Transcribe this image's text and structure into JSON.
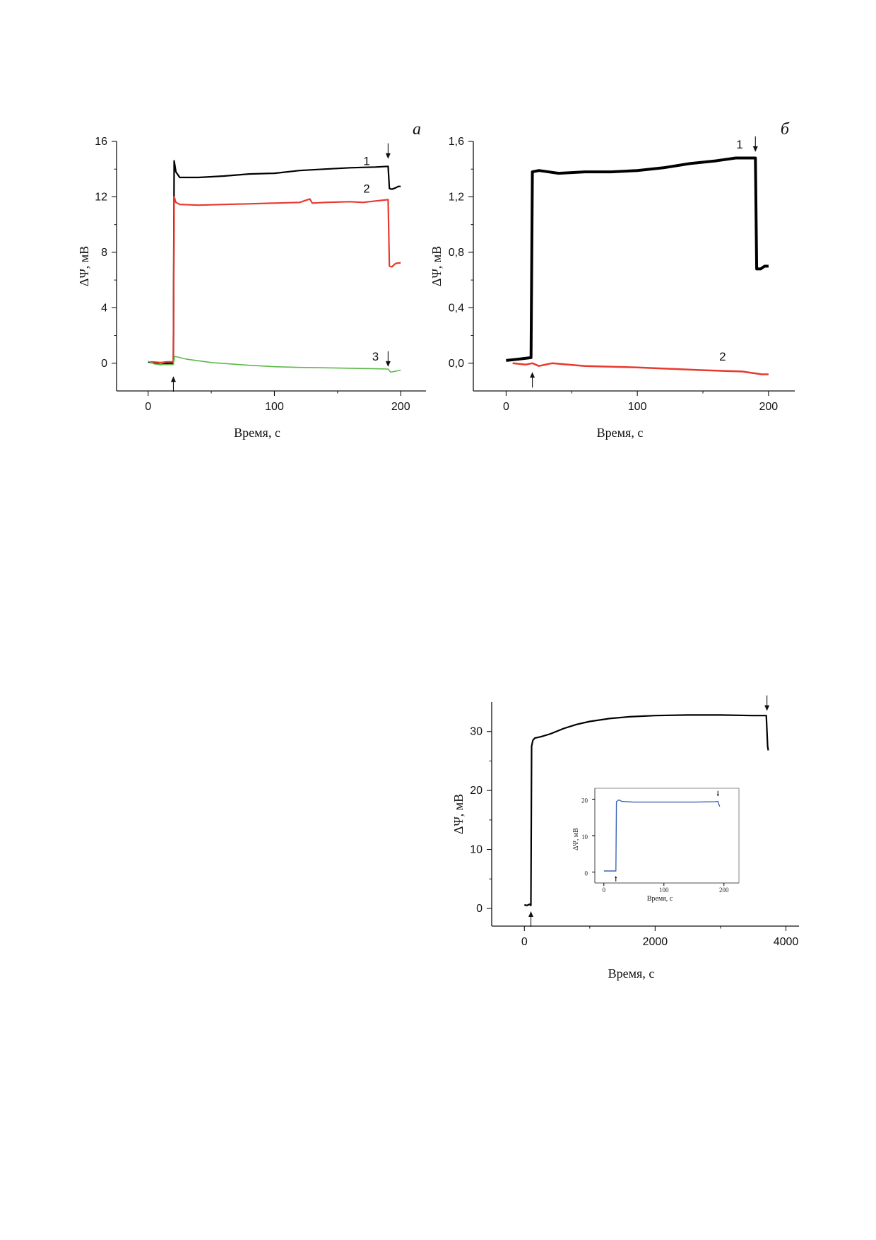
{
  "chart_data": [
    {
      "id": "a",
      "type": "line",
      "panel_letter": "a",
      "xlabel": "Время, с",
      "ylabel": "ΔΨ, мВ",
      "xlim": [
        -25,
        220
      ],
      "ylim": [
        -2,
        16
      ],
      "x_ticks": [
        0,
        100,
        200
      ],
      "x_tick_labels": [
        "0",
        "100",
        "200"
      ],
      "y_ticks": [
        0,
        4,
        8,
        12,
        16
      ],
      "y_tick_labels": [
        "0",
        "4",
        "8",
        "12",
        "16"
      ],
      "grid": false,
      "colors": {
        "1": "#000000",
        "2": "#e8392e",
        "3": "#5db84a"
      },
      "series": [
        {
          "label": "1",
          "color": "#000000",
          "width": 2.2,
          "points": [
            [
              0,
              0.1
            ],
            [
              5,
              0.0
            ],
            [
              10,
              -0.1
            ],
            [
              15,
              0.0
            ],
            [
              20,
              0.0
            ],
            [
              20.6,
              14.6
            ],
            [
              22,
              13.8
            ],
            [
              25,
              13.4
            ],
            [
              40,
              13.4
            ],
            [
              60,
              13.5
            ],
            [
              80,
              13.65
            ],
            [
              100,
              13.7
            ],
            [
              120,
              13.9
            ],
            [
              140,
              14.0
            ],
            [
              160,
              14.1
            ],
            [
              180,
              14.15
            ],
            [
              190,
              14.2
            ],
            [
              191,
              12.6
            ],
            [
              193,
              12.55
            ],
            [
              196,
              12.65
            ],
            [
              198,
              12.75
            ],
            [
              200,
              12.75
            ]
          ]
        },
        {
          "label": "2",
          "color": "#e8392e",
          "width": 2.2,
          "points": [
            [
              2,
              0.1
            ],
            [
              10,
              0.05
            ],
            [
              15,
              0.1
            ],
            [
              20,
              0.1
            ],
            [
              20.6,
              12.0
            ],
            [
              22,
              11.6
            ],
            [
              25,
              11.45
            ],
            [
              40,
              11.4
            ],
            [
              60,
              11.45
            ],
            [
              80,
              11.5
            ],
            [
              100,
              11.55
            ],
            [
              120,
              11.6
            ],
            [
              128,
              11.85
            ],
            [
              130,
              11.55
            ],
            [
              140,
              11.6
            ],
            [
              160,
              11.65
            ],
            [
              170,
              11.6
            ],
            [
              180,
              11.7
            ],
            [
              190,
              11.8
            ],
            [
              191,
              7.0
            ],
            [
              193,
              6.95
            ],
            [
              196,
              7.2
            ],
            [
              200,
              7.25
            ]
          ]
        },
        {
          "label": "3",
          "color": "#5db84a",
          "width": 1.6,
          "points": [
            [
              0,
              0.15
            ],
            [
              5,
              -0.05
            ],
            [
              10,
              -0.1
            ],
            [
              20,
              -0.1
            ],
            [
              21,
              0.5
            ],
            [
              30,
              0.3
            ],
            [
              50,
              0.05
            ],
            [
              80,
              -0.15
            ],
            [
              100,
              -0.25
            ],
            [
              120,
              -0.3
            ],
            [
              150,
              -0.35
            ],
            [
              180,
              -0.4
            ],
            [
              190,
              -0.42
            ],
            [
              192,
              -0.65
            ],
            [
              197,
              -0.55
            ],
            [
              200,
              -0.5
            ]
          ]
        }
      ],
      "curve_labels": [
        {
          "text": "1",
          "x": 173,
          "y": 14.3
        },
        {
          "text": "2",
          "x": 173,
          "y": 12.3
        },
        {
          "text": "3",
          "x": 180,
          "y": 0.2
        }
      ],
      "arrows": [
        {
          "x": 20,
          "y": -1.5,
          "direction": "up"
        },
        {
          "x": 190,
          "y": 15.3,
          "direction": "down"
        },
        {
          "x": 190,
          "y": 0.3,
          "direction": "down"
        }
      ]
    },
    {
      "id": "b",
      "type": "line",
      "panel_letter": "б",
      "xlabel": "Время, с",
      "ylabel": "ΔΨ, мВ",
      "xlim": [
        -25,
        220
      ],
      "ylim": [
        -0.2,
        1.6
      ],
      "x_ticks": [
        0,
        100,
        200
      ],
      "x_tick_labels": [
        "0",
        "100",
        "200"
      ],
      "y_ticks": [
        0.0,
        0.4,
        0.8,
        1.2,
        1.6
      ],
      "y_tick_labels": [
        "0,0",
        "0,4",
        "0,8",
        "1,2",
        "1,6"
      ],
      "grid": false,
      "colors": {
        "1": "#000000",
        "2": "#e8392e"
      },
      "series": [
        {
          "label": "1",
          "color": "#000000",
          "width": 4,
          "points": [
            [
              0,
              0.02
            ],
            [
              10,
              0.03
            ],
            [
              19,
              0.04
            ],
            [
              20,
              1.38
            ],
            [
              25,
              1.39
            ],
            [
              40,
              1.37
            ],
            [
              60,
              1.38
            ],
            [
              80,
              1.38
            ],
            [
              100,
              1.39
            ],
            [
              120,
              1.41
            ],
            [
              140,
              1.44
            ],
            [
              160,
              1.46
            ],
            [
              175,
              1.48
            ],
            [
              190,
              1.48
            ],
            [
              191,
              0.68
            ],
            [
              194,
              0.68
            ],
            [
              197,
              0.7
            ],
            [
              200,
              0.7
            ]
          ]
        },
        {
          "label": "2",
          "color": "#e8392e",
          "width": 2.5,
          "points": [
            [
              5,
              0.0
            ],
            [
              15,
              -0.01
            ],
            [
              20,
              0.0
            ],
            [
              25,
              -0.02
            ],
            [
              35,
              0.0
            ],
            [
              60,
              -0.02
            ],
            [
              100,
              -0.03
            ],
            [
              150,
              -0.05
            ],
            [
              180,
              -0.06
            ],
            [
              195,
              -0.08
            ],
            [
              200,
              -0.08
            ]
          ]
        }
      ],
      "curve_labels": [
        {
          "text": "1",
          "x": 178,
          "y": 1.55
        },
        {
          "text": "2",
          "x": 165,
          "y": 0.02
        }
      ],
      "arrows": [
        {
          "x": 20,
          "y": -0.12,
          "direction": "up"
        },
        {
          "x": 190,
          "y": 1.58,
          "direction": "down"
        }
      ]
    },
    {
      "id": "c",
      "type": "line",
      "xlabel": "Время, с",
      "ylabel": "ΔΨ, мВ",
      "xlim": [
        -500,
        4200
      ],
      "ylim": [
        -3,
        35
      ],
      "x_ticks": [
        0,
        2000,
        4000
      ],
      "x_tick_labels": [
        "0",
        "2000",
        "4000"
      ],
      "y_ticks": [
        0,
        10,
        20,
        30
      ],
      "y_tick_labels": [
        "0",
        "10",
        "20",
        "30"
      ],
      "grid": false,
      "colors": {
        "1": "#000000"
      },
      "series": [
        {
          "color": "#000000",
          "width": 2.2,
          "points": [
            [
              0,
              0.6
            ],
            [
              40,
              0.5
            ],
            [
              80,
              0.7
            ],
            [
              100,
              0.5
            ],
            [
              110,
              27.5
            ],
            [
              130,
              28.5
            ],
            [
              160,
              28.9
            ],
            [
              250,
              29.1
            ],
            [
              400,
              29.6
            ],
            [
              600,
              30.5
            ],
            [
              800,
              31.2
            ],
            [
              1000,
              31.7
            ],
            [
              1300,
              32.2
            ],
            [
              1600,
              32.5
            ],
            [
              2000,
              32.7
            ],
            [
              2500,
              32.8
            ],
            [
              3000,
              32.8
            ],
            [
              3500,
              32.7
            ],
            [
              3700,
              32.7
            ],
            [
              3720,
              27.5
            ],
            [
              3730,
              26.8
            ]
          ]
        }
      ],
      "arrows": [
        {
          "x": 100,
          "y": -1.8,
          "direction": "up"
        },
        {
          "x": 3710,
          "y": 34.8,
          "direction": "down"
        }
      ],
      "inset": {
        "type": "line",
        "xlabel": "Время, с",
        "ylabel": "ΔΨ, мВ",
        "xlim": [
          -15,
          225
        ],
        "ylim": [
          -3,
          23
        ],
        "x_ticks": [
          0,
          100,
          200
        ],
        "x_tick_labels": [
          "0",
          "100",
          "200"
        ],
        "y_ticks": [
          0,
          10,
          20
        ],
        "y_tick_labels": [
          "0",
          "10",
          "20"
        ],
        "color": "#3f64b5",
        "points": [
          [
            0,
            0.3
          ],
          [
            10,
            0.3
          ],
          [
            20,
            0.3
          ],
          [
            21,
            19.3
          ],
          [
            25,
            19.8
          ],
          [
            30,
            19.4
          ],
          [
            50,
            19.2
          ],
          [
            100,
            19.2
          ],
          [
            150,
            19.2
          ],
          [
            185,
            19.3
          ],
          [
            190,
            19.4
          ],
          [
            191,
            18.8
          ],
          [
            193,
            18.0
          ]
        ],
        "arrows": [
          {
            "x": 20,
            "y": -1.8,
            "direction": "up"
          },
          {
            "x": 190,
            "y": 21.5,
            "direction": "down"
          }
        ]
      }
    }
  ]
}
